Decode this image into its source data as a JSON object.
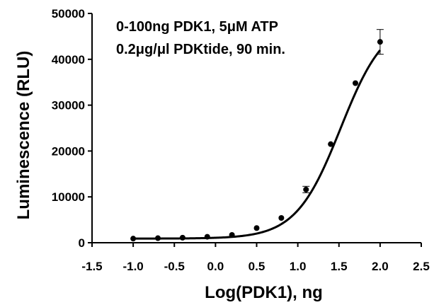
{
  "chart_data": {
    "type": "scatter",
    "xlabel": "Log(PDK1), ng",
    "ylabel": "Luminescence (RLU)",
    "annotation_lines": [
      "0-100ng PDK1, 5μM ATP",
      "0.2μg/μl PDKtide, 90 min."
    ],
    "xlim": [
      -1.5,
      2.5
    ],
    "ylim": [
      0,
      50000
    ],
    "x_tick_labels": [
      "-1.5",
      "-1.0",
      "-0.5",
      "0.0",
      "0.5",
      "1.0",
      "1.5",
      "2.0",
      "2.5"
    ],
    "y_tick_labels": [
      "0",
      "10000",
      "20000",
      "30000",
      "40000",
      "50000"
    ],
    "x_ticks": [
      -1.5,
      -1.0,
      -0.5,
      0.0,
      0.5,
      1.0,
      1.5,
      2.0,
      2.5
    ],
    "y_ticks": [
      0,
      10000,
      20000,
      30000,
      40000,
      50000
    ],
    "grid": false,
    "legend": "none",
    "series": [
      {
        "x": [
          -1.0,
          -0.7,
          -0.4,
          -0.1,
          0.2,
          0.5,
          0.8,
          1.1,
          1.4,
          1.7,
          2.0
        ],
        "y": [
          900,
          1000,
          1100,
          1300,
          1700,
          3200,
          5400,
          11600,
          21500,
          34800,
          43800
        ],
        "error": [
          0,
          0,
          0,
          0,
          0,
          0,
          0,
          700,
          0,
          0,
          2700
        ],
        "fit": "sigmoidal"
      }
    ],
    "fit_params": {
      "bottom": 900,
      "top": 49000,
      "logEC50": 1.52,
      "hill": 1.6
    }
  }
}
